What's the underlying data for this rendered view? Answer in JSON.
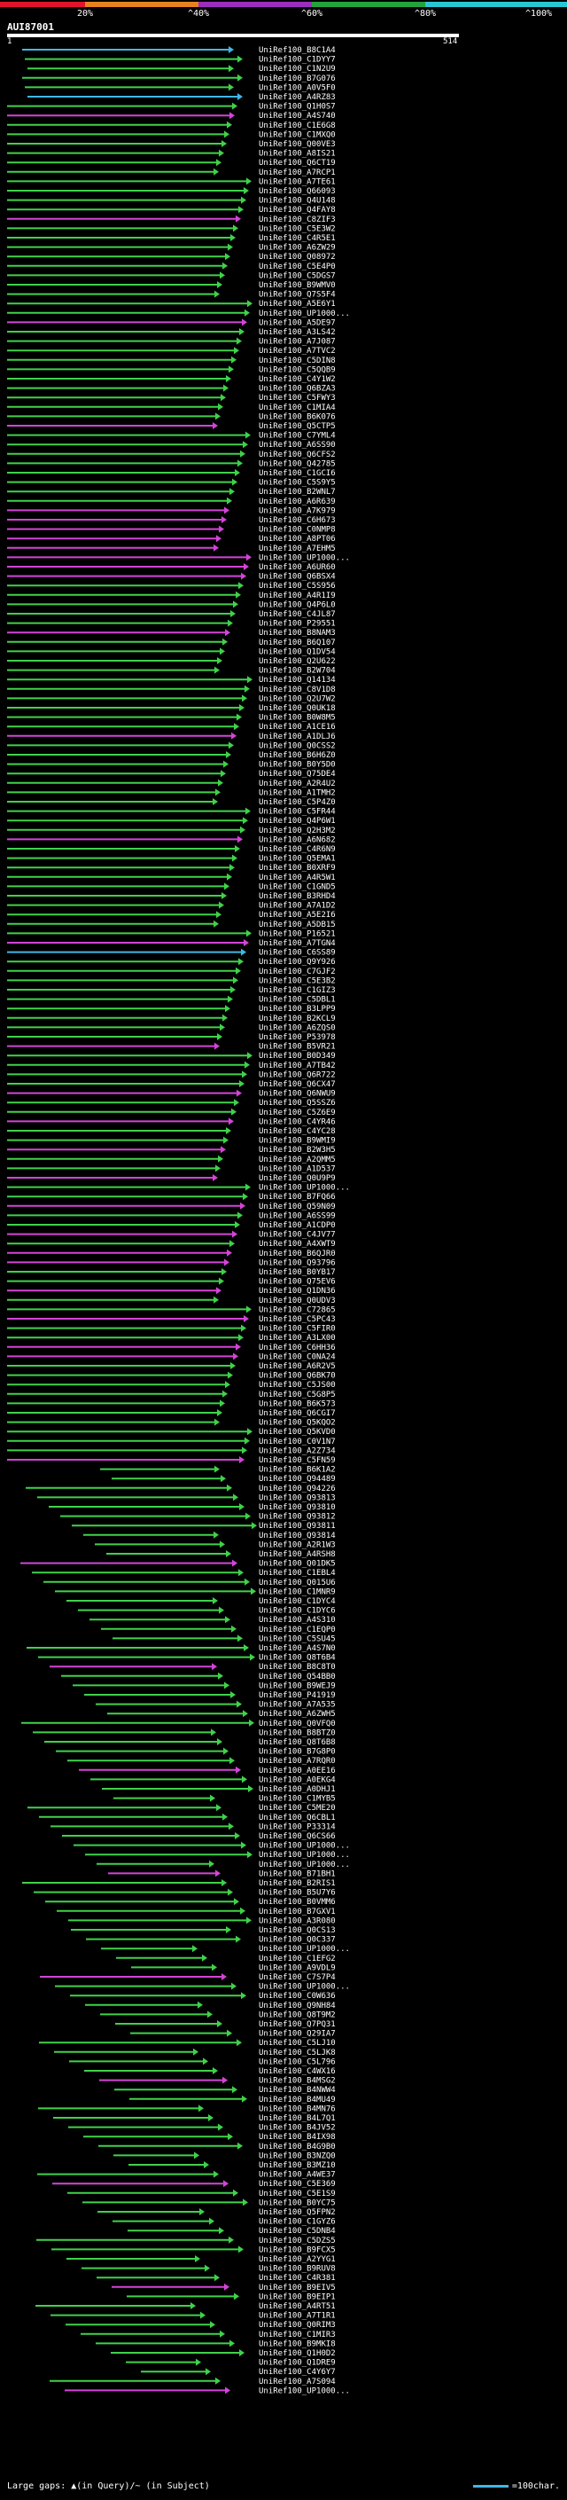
{
  "legend": {
    "ticks": [
      "20%",
      "^40%",
      "^60%",
      "^80%",
      "^100%"
    ],
    "segments": [
      {
        "color": "#e0142a"
      },
      {
        "color": "#e8821e"
      },
      {
        "color": "#9b2ec0"
      },
      {
        "color": "#23a33b"
      },
      {
        "color": "#27c8d4"
      }
    ]
  },
  "query": {
    "name": "AUI87001",
    "start": "1",
    "end": "514"
  },
  "footer": {
    "gaps_text": "Large gaps: ▲(in Query)/~ (in Subject)",
    "scale_text": "=100char."
  },
  "colors": {
    "cyan": "#3fb7e6",
    "green": "#3fd24a",
    "magenta": "#d444d8",
    "white": "#ffffff"
  },
  "hits": [
    {
      "name": "UniRef100_B8C1A4"
    },
    {
      "name": "UniRef100_C1DYY7"
    },
    {
      "name": "UniRef100_C1N2U9"
    },
    {
      "name": "UniRef100_B7G076"
    },
    {
      "name": "UniRef100_A0V5F0"
    },
    {
      "name": "UniRef100_A4RZ83"
    },
    {
      "name": "UniRef100_Q1H0S7"
    },
    {
      "name": "UniRef100_A4S740"
    },
    {
      "name": "UniRef100_C1E6G8"
    },
    {
      "name": "UniRef100_C1MXQ0"
    },
    {
      "name": "UniRef100_Q00VE3"
    },
    {
      "name": "UniRef100_A8IS21"
    },
    {
      "name": "UniRef100_Q6CT19"
    },
    {
      "name": "UniRef100_A7RCP1"
    },
    {
      "name": "UniRef100_A7TE61"
    },
    {
      "name": "UniRef100_Q66093"
    },
    {
      "name": "UniRef100_Q4U148"
    },
    {
      "name": "UniRef100_Q4FAY8"
    },
    {
      "name": "UniRef100_C8ZIF3"
    },
    {
      "name": "UniRef100_C5E3W2"
    },
    {
      "name": "UniRef100_C4R5E1"
    },
    {
      "name": "UniRef100_A6ZW29"
    },
    {
      "name": "UniRef100_Q08972"
    },
    {
      "name": "UniRef100_C5E4P0"
    },
    {
      "name": "UniRef100_C5DGS7"
    },
    {
      "name": "UniRef100_B9WMV0"
    },
    {
      "name": "UniRef100_Q7S5F4"
    },
    {
      "name": "UniRef100_A5E6Y1"
    },
    {
      "name": "UniRef100_UP1000..."
    },
    {
      "name": "UniRef100_A5DE97"
    },
    {
      "name": "UniRef100_A3LS42"
    },
    {
      "name": "UniRef100_A7J087"
    },
    {
      "name": "UniRef100_A7TVC2"
    },
    {
      "name": "UniRef100_C5DIN8"
    },
    {
      "name": "UniRef100_C5QQB9"
    },
    {
      "name": "UniRef100_C4Y1W2"
    },
    {
      "name": "UniRef100_Q6BZA3"
    },
    {
      "name": "UniRef100_C5FWY3"
    },
    {
      "name": "UniRef100_C1MIA4"
    },
    {
      "name": "UniRef100_B6K076"
    },
    {
      "name": "UniRef100_Q5CTP5"
    },
    {
      "name": "UniRef100_C7YML4"
    },
    {
      "name": "UniRef100_A6SS90"
    },
    {
      "name": "UniRef100_Q6CFS2"
    },
    {
      "name": "UniRef100_Q42785"
    },
    {
      "name": "UniRef100_C1GCI6"
    },
    {
      "name": "UniRef100_C5S9Y5"
    },
    {
      "name": "UniRef100_B2WNL7"
    },
    {
      "name": "UniRef100_A6R639"
    },
    {
      "name": "UniRef100_A7K979"
    },
    {
      "name": "UniRef100_C6H673"
    },
    {
      "name": "UniRef100_C0NMP8"
    },
    {
      "name": "UniRef100_A8PT06"
    },
    {
      "name": "UniRef100_A7EHM5"
    },
    {
      "name": "UniRef100_UP1000..."
    },
    {
      "name": "UniRef100_A6UR60"
    },
    {
      "name": "UniRef100_Q6BSX4"
    },
    {
      "name": "UniRef100_C5S956"
    },
    {
      "name": "UniRef100_A4R1I9"
    },
    {
      "name": "UniRef100_Q4P6L0"
    },
    {
      "name": "UniRef100_C4JL87"
    },
    {
      "name": "UniRef100_P29551"
    },
    {
      "name": "UniRef100_B8NAM3"
    },
    {
      "name": "UniRef100_B6Q107"
    },
    {
      "name": "UniRef100_Q1DV54"
    },
    {
      "name": "UniRef100_Q2U622"
    },
    {
      "name": "UniRef100_B2W704"
    },
    {
      "name": "UniRef100_Q14134"
    },
    {
      "name": "UniRef100_C8V1D8"
    },
    {
      "name": "UniRef100_Q2U7W2"
    },
    {
      "name": "UniRef100_Q0UK18"
    },
    {
      "name": "UniRef100_B0W8M5"
    },
    {
      "name": "UniRef100_A1CE16"
    },
    {
      "name": "UniRef100_A1DLJ6"
    },
    {
      "name": "UniRef100_Q0CSS2"
    },
    {
      "name": "UniRef100_B6H6Z0"
    },
    {
      "name": "UniRef100_B0Y5D0"
    },
    {
      "name": "UniRef100_Q75DE4"
    },
    {
      "name": "UniRef100_A2R4U2"
    },
    {
      "name": "UniRef100_A1TMH2"
    },
    {
      "name": "UniRef100_C5P4Z0"
    },
    {
      "name": "UniRef100_C5FR44"
    },
    {
      "name": "UniRef100_Q4P6W1"
    },
    {
      "name": "UniRef100_Q2H3M2"
    },
    {
      "name": "UniRef100_A6N682"
    },
    {
      "name": "UniRef100_C4R6N9"
    },
    {
      "name": "UniRef100_Q5EMA1"
    },
    {
      "name": "UniRef100_B0XRF9"
    },
    {
      "name": "UniRef100_A4R5W1"
    },
    {
      "name": "UniRef100_C1GND5"
    },
    {
      "name": "UniRef100_B3RHD4"
    },
    {
      "name": "UniRef100_A7A1D2"
    },
    {
      "name": "UniRef100_A5E2I6"
    },
    {
      "name": "UniRef100_A5DB15"
    },
    {
      "name": "UniRef100_P16521"
    },
    {
      "name": "UniRef100_A7TGN4"
    },
    {
      "name": "UniRef100_C6SS89"
    },
    {
      "name": "UniRef100_Q9Y926"
    },
    {
      "name": "UniRef100_C7GJF2"
    },
    {
      "name": "UniRef100_C5E3B2"
    },
    {
      "name": "UniRef100_C1GIZ3"
    },
    {
      "name": "UniRef100_C5DBL1"
    },
    {
      "name": "UniRef100_B3LPP9"
    },
    {
      "name": "UniRef100_B2KCL9"
    },
    {
      "name": "UniRef100_A6ZQS0"
    },
    {
      "name": "UniRef100_P53978"
    },
    {
      "name": "UniRef100_B5VR21"
    },
    {
      "name": "UniRef100_B0D349"
    },
    {
      "name": "UniRef100_A7TB42"
    },
    {
      "name": "UniRef100_Q6R722"
    },
    {
      "name": "UniRef100_Q6CX47"
    },
    {
      "name": "UniRef100_Q6NWU9"
    },
    {
      "name": "UniRef100_Q5SSZ6"
    },
    {
      "name": "UniRef100_C5Z6E9"
    },
    {
      "name": "UniRef100_C4YR46"
    },
    {
      "name": "UniRef100_C4YC28"
    },
    {
      "name": "UniRef100_B9WMI9"
    },
    {
      "name": "UniRef100_B2W3H5"
    },
    {
      "name": "UniRef100_A2QMM5"
    },
    {
      "name": "UniRef100_A1D537"
    },
    {
      "name": "UniRef100_Q0U9P9"
    },
    {
      "name": "UniRef100_UP1000..."
    },
    {
      "name": "UniRef100_B7FQ66"
    },
    {
      "name": "UniRef100_Q59N09"
    },
    {
      "name": "UniRef100_A6SS99"
    },
    {
      "name": "UniRef100_A1CDP0"
    },
    {
      "name": "UniRef100_C4JV77"
    },
    {
      "name": "UniRef100_A4XWT9"
    },
    {
      "name": "UniRef100_B6QJR0"
    },
    {
      "name": "UniRef100_Q93796"
    },
    {
      "name": "UniRef100_B0YB17"
    },
    {
      "name": "UniRef100_Q75EV6"
    },
    {
      "name": "UniRef100_Q1DN36"
    },
    {
      "name": "UniRef100_Q0UDV3"
    },
    {
      "name": "UniRef100_C72865"
    },
    {
      "name": "UniRef100_C5PC43"
    },
    {
      "name": "UniRef100_C5FIR0"
    },
    {
      "name": "UniRef100_A3LX00"
    },
    {
      "name": "UniRef100_C6HH36"
    },
    {
      "name": "UniRef100_C0NA24"
    },
    {
      "name": "UniRef100_A6R2V5"
    },
    {
      "name": "UniRef100_Q6BK70"
    },
    {
      "name": "UniRef100_C5JS00"
    },
    {
      "name": "UniRef100_C5G8P5"
    },
    {
      "name": "UniRef100_B6K573"
    },
    {
      "name": "UniRef100_Q6CGI7"
    },
    {
      "name": "UniRef100_Q5KQO2"
    },
    {
      "name": "UniRef100_Q5KVD0"
    },
    {
      "name": "UniRef100_C0V1N7"
    },
    {
      "name": "UniRef100_A2Z734"
    },
    {
      "name": "UniRef100_C5FN59"
    },
    {
      "name": "UniRef100_B6K1A2"
    },
    {
      "name": "UniRef100_Q94489"
    },
    {
      "name": "UniRef100_Q94226"
    },
    {
      "name": "UniRef100_Q93813"
    },
    {
      "name": "UniRef100_Q93810"
    },
    {
      "name": "UniRef100_Q93812"
    },
    {
      "name": "UniRef100_Q93811"
    },
    {
      "name": "UniRef100_Q93814"
    },
    {
      "name": "UniRef100_A2R1W3"
    },
    {
      "name": "UniRef100_A4RSH8"
    },
    {
      "name": "UniRef100_Q01DK5"
    },
    {
      "name": "UniRef100_C1EBL4"
    },
    {
      "name": "UniRef100_Q015U6"
    },
    {
      "name": "UniRef100_C1MNR9"
    },
    {
      "name": "UniRef100_C1DYC4"
    },
    {
      "name": "UniRef100_C1DYC6"
    },
    {
      "name": "UniRef100_A4S310"
    },
    {
      "name": "UniRef100_C1EQP0"
    },
    {
      "name": "UniRef100_C5SU45"
    },
    {
      "name": "UniRef100_A4S7N0"
    },
    {
      "name": "UniRef100_Q8T6B4"
    },
    {
      "name": "UniRef100_B8C8T0"
    },
    {
      "name": "UniRef100_Q54BB0"
    },
    {
      "name": "UniRef100_B9WEJ9"
    },
    {
      "name": "UniRef100_P41919"
    },
    {
      "name": "UniRef100_A7A535"
    },
    {
      "name": "UniRef100_A6ZWH5"
    },
    {
      "name": "UniRef100_Q0VFQ0"
    },
    {
      "name": "UniRef100_B8BTZ0"
    },
    {
      "name": "UniRef100_Q8T6B8"
    },
    {
      "name": "UniRef100_B7G8P0"
    },
    {
      "name": "UniRef100_A7RQR0"
    },
    {
      "name": "UniRef100_A0EE16"
    },
    {
      "name": "UniRef100_A0EKG4"
    },
    {
      "name": "UniRef100_A0DHJ1"
    },
    {
      "name": "UniRef100_C1MYB5"
    },
    {
      "name": "UniRef100_C5ME20"
    },
    {
      "name": "UniRef100_Q6CBL1"
    },
    {
      "name": "UniRef100_P33314"
    },
    {
      "name": "UniRef100_Q6CS66"
    },
    {
      "name": "UniRef100_UP1000..."
    },
    {
      "name": "UniRef100_UP1000..."
    },
    {
      "name": "UniRef100_UP1000..."
    },
    {
      "name": "UniRef100_B71BH1"
    },
    {
      "name": "UniRef100_B2RIS1"
    },
    {
      "name": "UniRef100_B5U7Y6"
    },
    {
      "name": "UniRef100_B0VMM6"
    },
    {
      "name": "UniRef100_B7GXV1"
    },
    {
      "name": "UniRef100_A3R080"
    },
    {
      "name": "UniRef100_Q0CS13"
    },
    {
      "name": "UniRef100_Q0C337"
    },
    {
      "name": "UniRef100_UP1000..."
    },
    {
      "name": "UniRef100_C1EFG2"
    },
    {
      "name": "UniRef100_A9VDL9"
    },
    {
      "name": "UniRef100_C7S7P4"
    },
    {
      "name": "UniRef100_UP1000..."
    },
    {
      "name": "UniRef100_C0W636"
    },
    {
      "name": "UniRef100_Q9NH84"
    },
    {
      "name": "UniRef100_Q8T9M2"
    },
    {
      "name": "UniRef100_Q7PQ31"
    },
    {
      "name": "UniRef100_Q29IA7"
    },
    {
      "name": "UniRef100_C5LJ10"
    },
    {
      "name": "UniRef100_C5LJK8"
    },
    {
      "name": "UniRef100_C5L796"
    },
    {
      "name": "UniRef100_C4WX16"
    },
    {
      "name": "UniRef100_B4MSG2"
    },
    {
      "name": "UniRef100_B4NWW4"
    },
    {
      "name": "UniRef100_B4MU49"
    },
    {
      "name": "UniRef100_B4MN76"
    },
    {
      "name": "UniRef100_B4L7Q1"
    },
    {
      "name": "UniRef100_B4JV52"
    },
    {
      "name": "UniRef100_B4IX98"
    },
    {
      "name": "UniRef100_B4G9B0"
    },
    {
      "name": "UniRef100_B3NZQ0"
    },
    {
      "name": "UniRef100_B3MZ10"
    },
    {
      "name": "UniRef100_A4WE37"
    },
    {
      "name": "UniRef100_C5E369"
    },
    {
      "name": "UniRef100_C5E1S9"
    },
    {
      "name": "UniRef100_B0YC75"
    },
    {
      "name": "UniRef100_Q5FPN2"
    },
    {
      "name": "UniRef100_C1GYZ6"
    },
    {
      "name": "UniRef100_C5DNB4"
    },
    {
      "name": "UniRef100_C5DZS5"
    },
    {
      "name": "UniRef100_B9FCX5"
    },
    {
      "name": "UniRef100_A2YYG1"
    },
    {
      "name": "UniRef100_B9RUV8"
    },
    {
      "name": "UniRef100_C4R381"
    },
    {
      "name": "UniRef100_B9EIV5"
    },
    {
      "name": "UniRef100_B9EIP1"
    },
    {
      "name": "UniRef100_A4RT51"
    },
    {
      "name": "UniRef100_A7T1R1"
    },
    {
      "name": "UniRef100_Q0RIM3"
    },
    {
      "name": "UniRef100_C1MIR3"
    },
    {
      "name": "UniRef100_B9MKI8"
    },
    {
      "name": "UniRef100_Q1H0D2"
    },
    {
      "name": "UniRef100_Q1DRE9"
    },
    {
      "name": "UniRef100_C4Y6Y7"
    },
    {
      "name": "UniRef100_A7S094"
    },
    {
      "name": "UniRef100_UP1000..."
    }
  ]
}
